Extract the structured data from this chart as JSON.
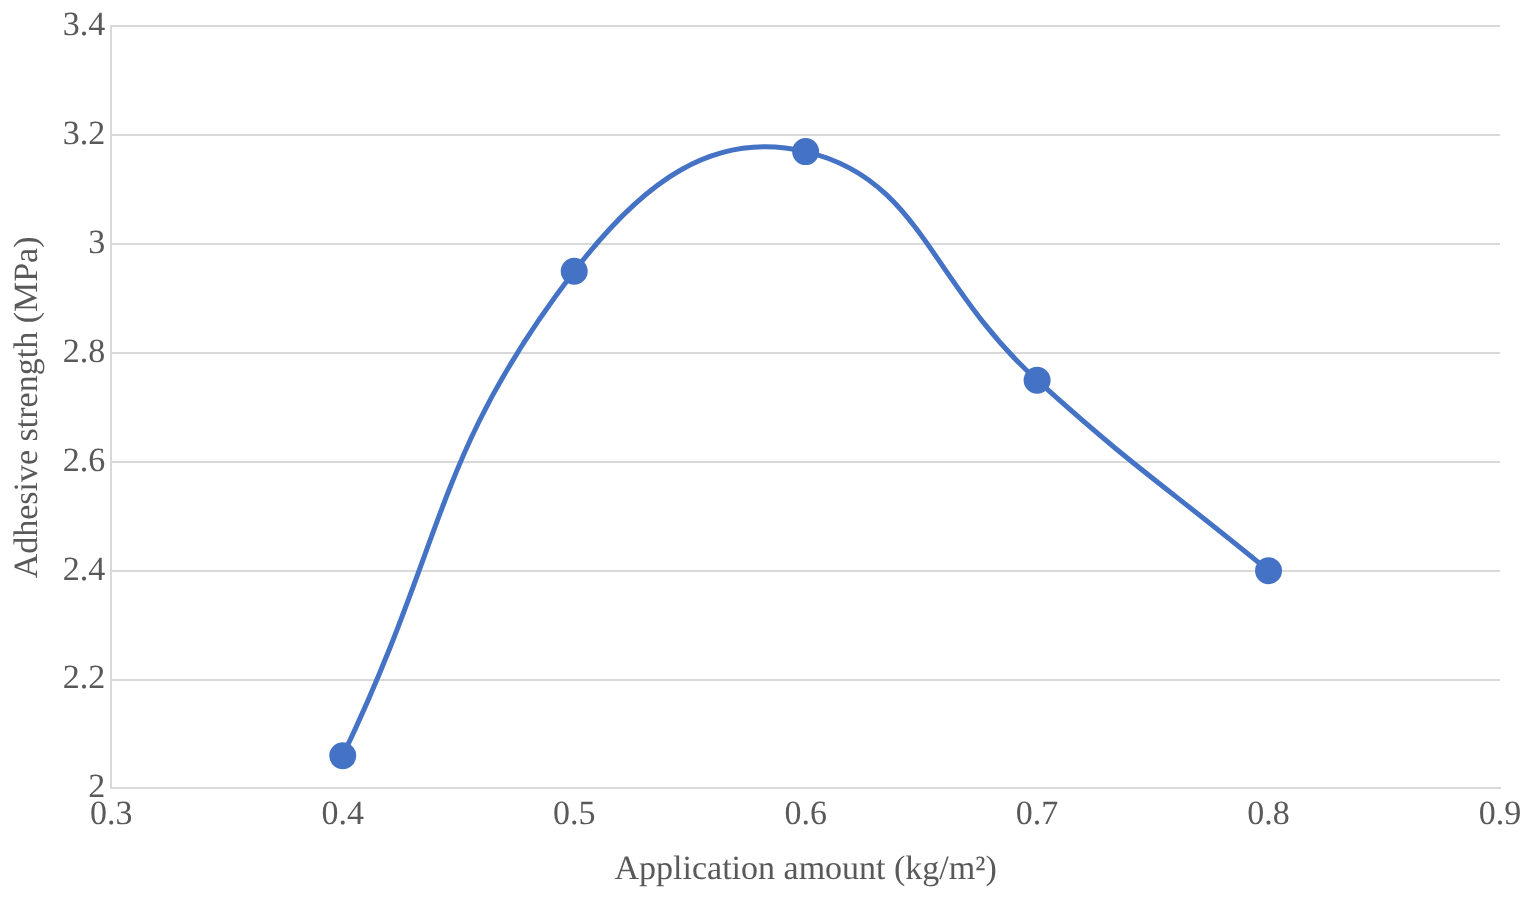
{
  "chart_data": {
    "type": "line",
    "xlabel": "Application amount (kg/m²)",
    "ylabel": "Adhesive strength (MPa)",
    "x": [
      0.4,
      0.5,
      0.6,
      0.7,
      0.8
    ],
    "series": [
      {
        "color": "#4472c4",
        "values": [
          2.06,
          2.95,
          3.17,
          2.75,
          2.4
        ]
      }
    ],
    "xlim": [
      0.3,
      0.9
    ],
    "xticks": [
      0.3,
      0.4,
      0.5,
      0.6,
      0.7,
      0.8,
      0.9
    ],
    "ylim": [
      2,
      3.4
    ],
    "yticks": [
      2,
      2.2,
      2.4,
      2.6,
      2.8,
      3,
      3.2,
      3.4
    ],
    "grid": "y",
    "legend": false,
    "marker": "circle",
    "line_style": "solid"
  }
}
